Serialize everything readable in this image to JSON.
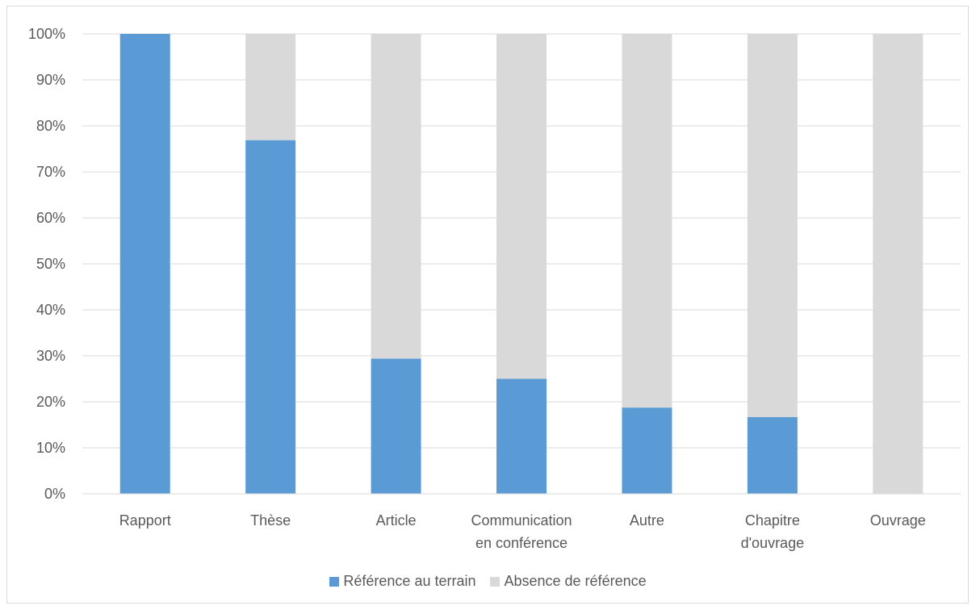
{
  "chart_data": {
    "type": "bar",
    "stacked": true,
    "percent_stacked": true,
    "categories": [
      [
        "Rapport"
      ],
      [
        "Thèse"
      ],
      [
        "Article"
      ],
      [
        "Communication",
        "en conférence"
      ],
      [
        "Autre"
      ],
      [
        "Chapitre",
        "d'ouvrage"
      ],
      [
        "Ouvrage"
      ]
    ],
    "series": [
      {
        "name": "Référence au terrain",
        "color": "#5b9bd5",
        "values": [
          100,
          76.9,
          29.4,
          25.0,
          18.75,
          16.7,
          0
        ]
      },
      {
        "name": "Absence de référence",
        "color": "#d9d9d9",
        "values": [
          0,
          23.1,
          70.6,
          75.0,
          81.25,
          83.3,
          100
        ]
      }
    ],
    "ylim": [
      0,
      100
    ],
    "yticks": [
      "0%",
      "10%",
      "20%",
      "30%",
      "40%",
      "50%",
      "60%",
      "70%",
      "80%",
      "90%",
      "100%"
    ],
    "grid": true,
    "legend_position": "bottom"
  }
}
